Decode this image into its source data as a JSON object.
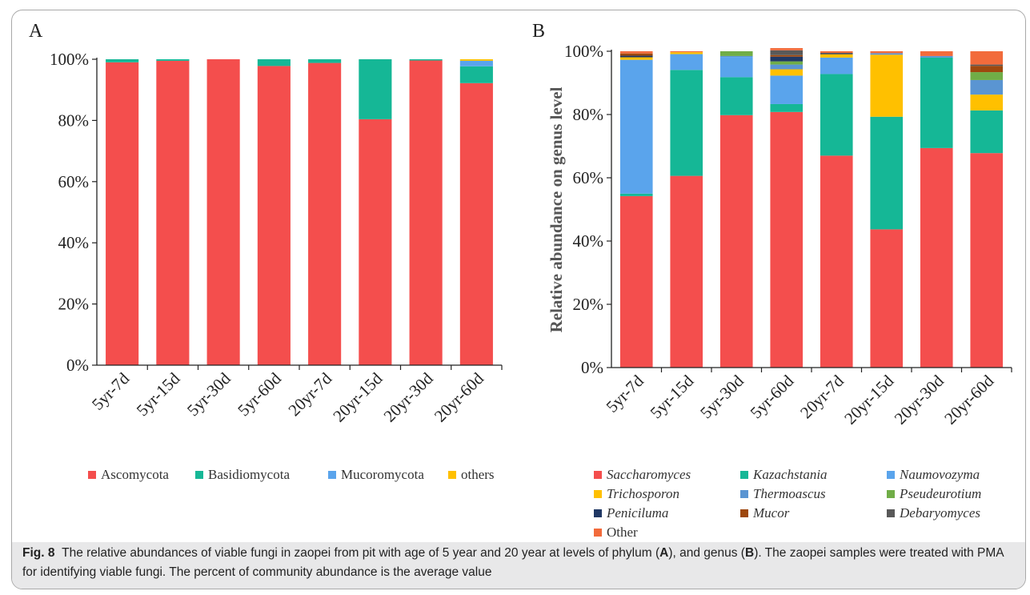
{
  "figure": {
    "caption": {
      "label": "Fig. 8",
      "text_1": "The relative abundances of viable fungi in zaopei from pit with age of 5 year and 20 year at levels of phylum (",
      "ref_a": "A",
      "text_2": "), and genus (",
      "ref_b": "B",
      "text_3": "). The zaopei samples were treated with PMA for identifying viable fungi. The percent of community abundance is the average value"
    }
  },
  "chart_data": [
    {
      "panel": "A",
      "type": "bar",
      "stacked": true,
      "ylabel": "",
      "yticks": [
        "0%",
        "20%",
        "40%",
        "60%",
        "80%",
        "100%"
      ],
      "ylim": [
        0,
        100
      ],
      "categories": [
        "5yr-7d",
        "5yr-15d",
        "5yr-30d",
        "5yr-60d",
        "20yr-7d",
        "20yr-15d",
        "20yr-30d",
        "20yr-60d"
      ],
      "series": [
        {
          "name": "Ascomycota",
          "color": "#f44e4d",
          "values": [
            99.0,
            99.5,
            100.0,
            97.8,
            98.8,
            80.4,
            99.6,
            92.2
          ]
        },
        {
          "name": "Basidiomycota",
          "color": "#15b796",
          "values": [
            1.0,
            0.5,
            0.0,
            2.2,
            1.2,
            19.6,
            0.4,
            5.5
          ]
        },
        {
          "name": "Mucoromycota",
          "color": "#5aa4ec",
          "values": [
            0,
            0,
            0,
            0,
            0,
            0,
            0,
            1.8
          ]
        },
        {
          "name": "others",
          "color": "#ffc000",
          "values": [
            0,
            0,
            0,
            0,
            0,
            0,
            0,
            0.5
          ]
        }
      ],
      "legend_position": "bottom"
    },
    {
      "panel": "B",
      "type": "bar",
      "stacked": true,
      "ylabel": "Relative abundance on genus level",
      "yticks": [
        "0%",
        "20%",
        "40%",
        "60%",
        "80%",
        "100%"
      ],
      "ylim": [
        0,
        100
      ],
      "categories": [
        "5yr-7d",
        "5yr-15d",
        "5yr-30d",
        "5yr-60d",
        "20yr-7d",
        "20yr-15d",
        "20yr-30d",
        "20yr-60d"
      ],
      "series": [
        {
          "name": "Saccharomyces",
          "color": "#f44e4d",
          "values": [
            54.2,
            60.6,
            79.8,
            80.8,
            67.0,
            43.7,
            69.4,
            67.8
          ]
        },
        {
          "name": "Kazachstania",
          "color": "#15b796",
          "values": [
            0.8,
            33.5,
            12.0,
            2.5,
            25.8,
            35.6,
            28.6,
            13.5
          ]
        },
        {
          "name": "Naumovozyma",
          "color": "#5aa4ec",
          "values": [
            42.3,
            5.0,
            6.4,
            9.0,
            5.2,
            0.0,
            0.0,
            0.0
          ]
        },
        {
          "name": "Trichosporon",
          "color": "#ffc000",
          "values": [
            0.8,
            0.6,
            0.0,
            2.0,
            1.0,
            19.6,
            0.0,
            5.0
          ]
        },
        {
          "name": "Thermoascus",
          "color": "#5a95d2",
          "values": [
            0.0,
            0.0,
            0.3,
            1.5,
            0.0,
            0.5,
            0.5,
            4.6
          ]
        },
        {
          "name": "Pseudeurotium",
          "color": "#70ad47",
          "values": [
            0.0,
            0.0,
            1.5,
            1.0,
            0.0,
            0.0,
            0.0,
            2.5
          ]
        },
        {
          "name": "Peniciluma",
          "color": "#203864",
          "values": [
            0.5,
            0.0,
            0.0,
            1.5,
            0.0,
            0.0,
            0.0,
            0.0
          ]
        },
        {
          "name": "Mucor",
          "color": "#9e480e",
          "values": [
            0.7,
            0.0,
            0.0,
            0.5,
            0.0,
            0.0,
            0.0,
            2.0
          ]
        },
        {
          "name": "Debaryomyces",
          "color": "#595959",
          "values": [
            0.0,
            0.0,
            0.0,
            1.5,
            0.5,
            0.0,
            0.0,
            0.4
          ]
        },
        {
          "name": "Other",
          "color": "#f26b3b",
          "values": [
            0.7,
            0.3,
            0.0,
            0.7,
            0.5,
            0.6,
            1.5,
            4.2
          ]
        }
      ],
      "legend_position": "bottom"
    }
  ]
}
